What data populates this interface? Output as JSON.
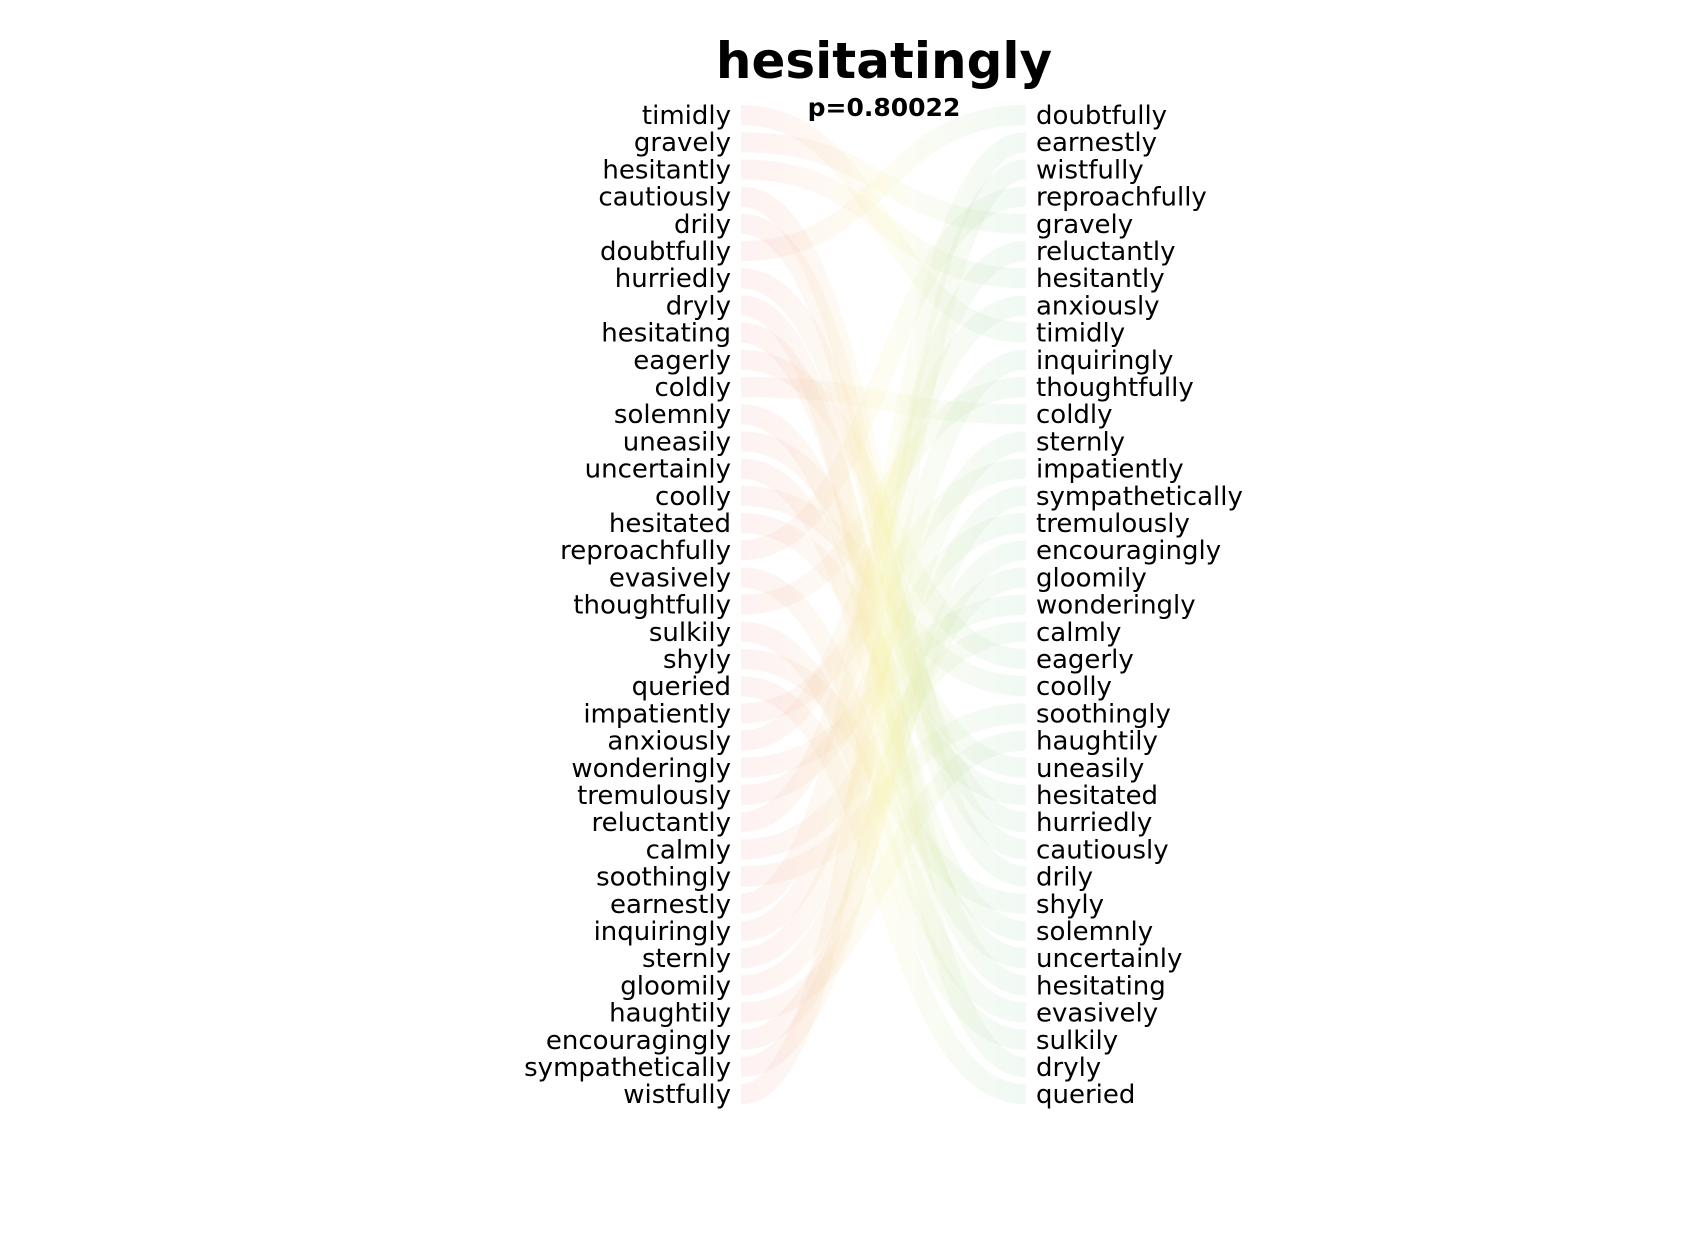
{
  "chart_data": {
    "type": "bump",
    "title": "hesitatingly",
    "subtitle": "p=0.80022",
    "left_ranking": [
      "timidly",
      "gravely",
      "hesitantly",
      "cautiously",
      "drily",
      "doubtfully",
      "hurriedly",
      "dryly",
      "hesitating",
      "eagerly",
      "coldly",
      "solemnly",
      "uneasily",
      "uncertainly",
      "coolly",
      "hesitated",
      "reproachfully",
      "evasively",
      "thoughtfully",
      "sulkily",
      "shyly",
      "queried",
      "impatiently",
      "anxiously",
      "wonderingly",
      "tremulously",
      "reluctantly",
      "calmly",
      "soothingly",
      "earnestly",
      "inquiringly",
      "sternly",
      "gloomily",
      "haughtily",
      "encouragingly",
      "sympathetically",
      "wistfully"
    ],
    "right_ranking": [
      "doubtfully",
      "earnestly",
      "wistfully",
      "reproachfully",
      "gravely",
      "reluctantly",
      "hesitantly",
      "anxiously",
      "timidly",
      "inquiringly",
      "thoughtfully",
      "coldly",
      "sternly",
      "impatiently",
      "sympathetically",
      "tremulously",
      "encouragingly",
      "gloomily",
      "wonderingly",
      "calmly",
      "eagerly",
      "coolly",
      "soothingly",
      "haughtily",
      "uneasily",
      "hesitated",
      "hurriedly",
      "cautiously",
      "drily",
      "shyly",
      "solemnly",
      "uncertainly",
      "hesitating",
      "evasively",
      "sulkily",
      "dryly",
      "queried"
    ],
    "colors": {
      "up": "#8fd1a8",
      "down": "#f29a9a",
      "mid": "#f5f0a0"
    }
  }
}
